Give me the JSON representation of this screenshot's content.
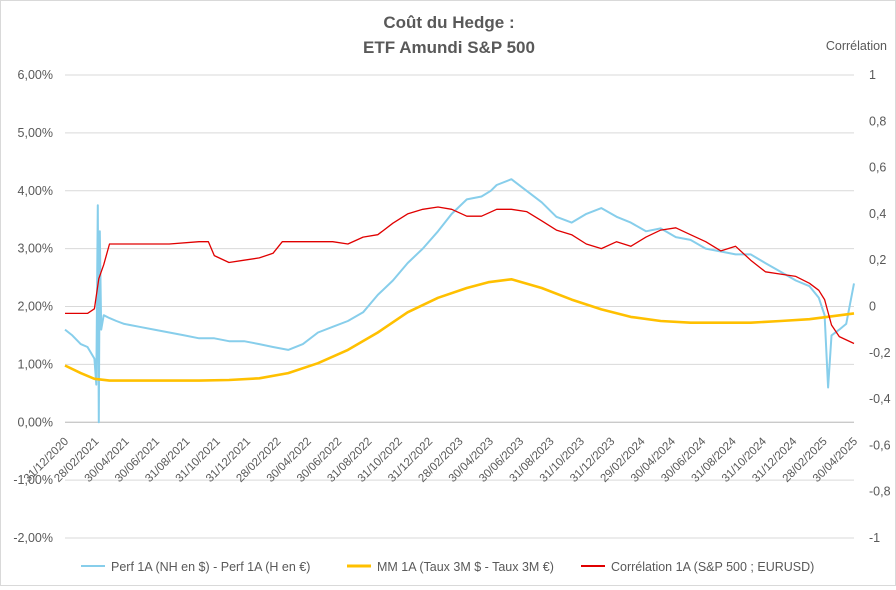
{
  "chart_data": {
    "type": "line",
    "title": [
      "Coût du Hedge :",
      "ETF Amundi S&P 500"
    ],
    "y2label": "Corrélation",
    "ylim": [
      -0.02,
      0.06
    ],
    "y2lim": [
      -1,
      1
    ],
    "yticks": [
      "6,00%",
      "5,00%",
      "4,00%",
      "3,00%",
      "2,00%",
      "1,00%",
      "0,00%",
      "-1,00%",
      "-2,00%"
    ],
    "y2ticks": [
      "1",
      "0,8",
      "0,6",
      "0,4",
      "0,2",
      "0",
      "-0,2",
      "-0,4",
      "-0,6",
      "-0,8",
      "-1"
    ],
    "x_range": [
      "2020-12-31",
      "2025-05-31"
    ],
    "xticks": [
      "31/12/2020",
      "28/02/2021",
      "30/04/2021",
      "30/06/2021",
      "31/08/2021",
      "31/10/2021",
      "31/12/2021",
      "28/02/2022",
      "30/04/2022",
      "30/06/2022",
      "31/08/2022",
      "31/10/2022",
      "31/12/2022",
      "28/02/2023",
      "30/04/2023",
      "30/06/2023",
      "31/08/2023",
      "31/10/2023",
      "31/12/2023",
      "29/02/2024",
      "30/04/2024",
      "30/06/2024",
      "31/08/2024",
      "31/10/2024",
      "31/12/2024",
      "28/02/2025",
      "30/04/2025"
    ],
    "grid": true,
    "legend_position": "bottom",
    "series": [
      {
        "name": "Perf 1A (NH en $) - Perf 1A (H en €)",
        "axis": "left",
        "color": "#87CEEB",
        "x": [
          "2020-12-31",
          "2021-01-15",
          "2021-02-01",
          "2021-02-15",
          "2021-03-01",
          "2021-03-05",
          "2021-03-08",
          "2021-03-10",
          "2021-03-12",
          "2021-03-15",
          "2021-03-20",
          "2021-04-01",
          "2021-04-15",
          "2021-05-01",
          "2021-06-01",
          "2021-07-01",
          "2021-08-01",
          "2021-09-01",
          "2021-10-01",
          "2021-11-01",
          "2021-12-01",
          "2022-01-01",
          "2022-02-01",
          "2022-03-01",
          "2022-04-01",
          "2022-05-01",
          "2022-06-01",
          "2022-07-01",
          "2022-08-01",
          "2022-09-01",
          "2022-10-01",
          "2022-11-01",
          "2022-12-01",
          "2023-01-01",
          "2023-02-01",
          "2023-03-01",
          "2023-04-01",
          "2023-05-01",
          "2023-05-20",
          "2023-06-01",
          "2023-07-01",
          "2023-08-01",
          "2023-09-01",
          "2023-10-01",
          "2023-11-01",
          "2023-12-01",
          "2024-01-01",
          "2024-02-01",
          "2024-03-01",
          "2024-04-01",
          "2024-05-01",
          "2024-06-01",
          "2024-07-01",
          "2024-08-01",
          "2024-09-01",
          "2024-10-01",
          "2024-11-01",
          "2024-12-01",
          "2025-01-01",
          "2025-02-01",
          "2025-03-01",
          "2025-03-20",
          "2025-04-01",
          "2025-04-08",
          "2025-04-15",
          "2025-05-01",
          "2025-05-15",
          "2025-05-31"
        ],
        "y": [
          0.016,
          0.015,
          0.0135,
          0.013,
          0.011,
          0.0065,
          0.0375,
          0.0,
          0.033,
          0.016,
          0.0185,
          0.018,
          0.0175,
          0.017,
          0.0165,
          0.016,
          0.0155,
          0.015,
          0.0145,
          0.0145,
          0.014,
          0.014,
          0.0135,
          0.013,
          0.0125,
          0.0135,
          0.0155,
          0.0165,
          0.0175,
          0.019,
          0.022,
          0.0245,
          0.0275,
          0.03,
          0.033,
          0.036,
          0.0385,
          0.039,
          0.04,
          0.041,
          0.042,
          0.04,
          0.038,
          0.0355,
          0.0345,
          0.036,
          0.037,
          0.0355,
          0.0345,
          0.033,
          0.0335,
          0.032,
          0.0315,
          0.03,
          0.0295,
          0.029,
          0.029,
          0.0275,
          0.026,
          0.0245,
          0.0235,
          0.0215,
          0.0185,
          0.006,
          0.015,
          0.016,
          0.017,
          0.024
        ]
      },
      {
        "name": "MM 1A (Taux 3M $ - Taux 3M €)",
        "axis": "left",
        "color": "#FFC000",
        "x": [
          "2020-12-31",
          "2021-02-01",
          "2021-03-01",
          "2021-04-01",
          "2021-06-01",
          "2021-08-01",
          "2021-10-01",
          "2021-12-01",
          "2022-02-01",
          "2022-04-01",
          "2022-06-01",
          "2022-08-01",
          "2022-10-01",
          "2022-12-01",
          "2023-02-01",
          "2023-04-01",
          "2023-05-15",
          "2023-07-01",
          "2023-09-01",
          "2023-11-01",
          "2024-01-01",
          "2024-03-01",
          "2024-05-01",
          "2024-07-01",
          "2024-09-01",
          "2024-11-01",
          "2025-01-01",
          "2025-03-01",
          "2025-05-31"
        ],
        "y": [
          0.0098,
          0.0085,
          0.0075,
          0.0072,
          0.0072,
          0.0072,
          0.0072,
          0.0073,
          0.0076,
          0.0085,
          0.0102,
          0.0125,
          0.0155,
          0.019,
          0.0215,
          0.0232,
          0.0242,
          0.0247,
          0.0232,
          0.0212,
          0.0195,
          0.0182,
          0.0175,
          0.0172,
          0.0172,
          0.0172,
          0.0175,
          0.0178,
          0.0188
        ]
      },
      {
        "name": "Corrélation 1A (S&P 500 ; EURUSD)",
        "axis": "right",
        "color": "#E00000",
        "x": [
          "2020-12-31",
          "2021-02-15",
          "2021-03-01",
          "2021-03-10",
          "2021-03-20",
          "2021-04-01",
          "2021-06-01",
          "2021-08-01",
          "2021-10-01",
          "2021-10-20",
          "2021-11-01",
          "2021-12-01",
          "2022-01-01",
          "2022-02-01",
          "2022-03-01",
          "2022-03-20",
          "2022-04-01",
          "2022-06-01",
          "2022-07-01",
          "2022-08-01",
          "2022-09-01",
          "2022-10-01",
          "2022-11-01",
          "2022-12-01",
          "2023-01-01",
          "2023-02-01",
          "2023-03-01",
          "2023-04-01",
          "2023-05-01",
          "2023-06-01",
          "2023-07-01",
          "2023-08-01",
          "2023-09-01",
          "2023-10-01",
          "2023-11-01",
          "2023-12-01",
          "2024-01-01",
          "2024-02-01",
          "2024-03-01",
          "2024-04-01",
          "2024-05-01",
          "2024-06-01",
          "2024-07-01",
          "2024-08-01",
          "2024-09-01",
          "2024-10-01",
          "2024-11-01",
          "2024-12-01",
          "2025-01-01",
          "2025-02-01",
          "2025-03-01",
          "2025-03-20",
          "2025-04-01",
          "2025-04-15",
          "2025-05-01",
          "2025-05-31"
        ],
        "y": [
          -0.03,
          -0.03,
          -0.01,
          0.12,
          0.18,
          0.27,
          0.27,
          0.27,
          0.28,
          0.28,
          0.22,
          0.19,
          0.2,
          0.21,
          0.23,
          0.28,
          0.28,
          0.28,
          0.28,
          0.27,
          0.3,
          0.31,
          0.36,
          0.4,
          0.42,
          0.43,
          0.42,
          0.39,
          0.39,
          0.42,
          0.42,
          0.41,
          0.37,
          0.33,
          0.31,
          0.27,
          0.25,
          0.28,
          0.26,
          0.3,
          0.33,
          0.34,
          0.31,
          0.28,
          0.24,
          0.26,
          0.2,
          0.15,
          0.14,
          0.13,
          0.1,
          0.07,
          0.03,
          -0.08,
          -0.13,
          -0.16
        ]
      }
    ]
  }
}
